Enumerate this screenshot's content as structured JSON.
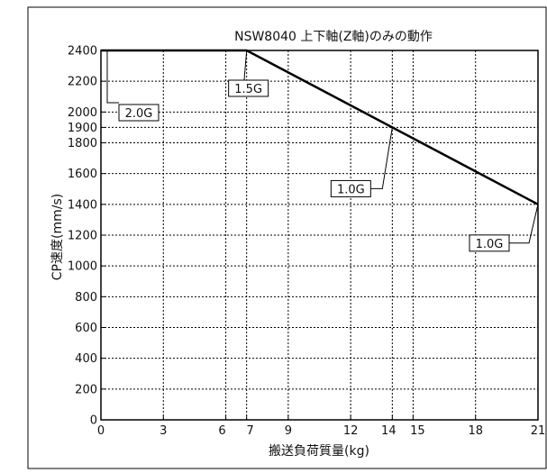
{
  "chart_data": {
    "type": "line",
    "title": "NSW8040 上下軸(Z軸)のみの動作",
    "xlabel": "搬送負荷質量(kg)",
    "ylabel": "CP速度(mm/s)",
    "xlim": [
      0,
      21
    ],
    "ylim": [
      0,
      2400
    ],
    "x_ticks": [
      0,
      3,
      6,
      7,
      9,
      12,
      14,
      15,
      18,
      21
    ],
    "y_ticks": [
      0,
      200,
      400,
      600,
      800,
      1000,
      1200,
      1400,
      1600,
      1800,
      1900,
      2000,
      2200,
      2400
    ],
    "x_tick_labels": [
      "0",
      "3",
      "6",
      "7",
      "9",
      "12",
      "14",
      "15",
      "18",
      "21"
    ],
    "y_tick_labels": [
      "0",
      "200",
      "400",
      "600",
      "800",
      "1000",
      "1200",
      "1400",
      "1600",
      "1800",
      "1900",
      "2000",
      "2200",
      "2400"
    ],
    "grid": true,
    "line_color": "#000000",
    "series": [
      {
        "x": [
          0,
          7,
          21
        ],
        "y": [
          2400,
          2400,
          1400
        ]
      }
    ],
    "annotations": [
      {
        "text": "2.0G",
        "x": 0,
        "y": 2400
      },
      {
        "text": "1.5G",
        "x": 7,
        "y": 2400
      },
      {
        "text": "1.0G",
        "x": 14,
        "y": 1900
      },
      {
        "text": "1.0G",
        "x": 21,
        "y": 1400
      }
    ]
  }
}
